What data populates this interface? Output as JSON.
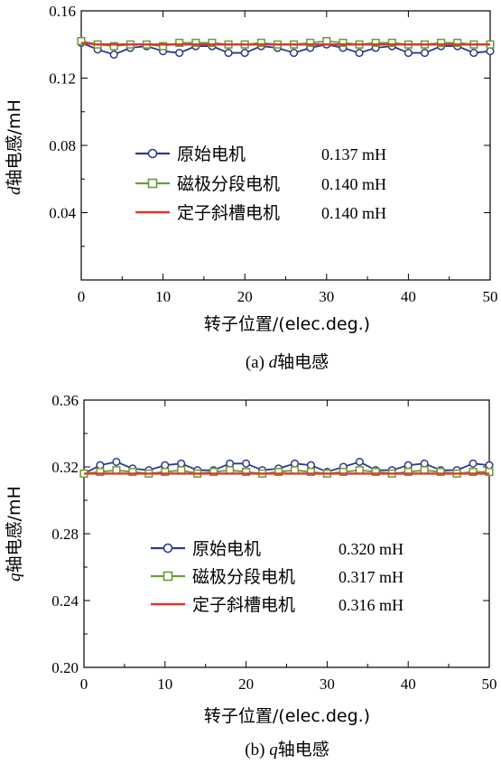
{
  "chart_data": [
    {
      "type": "line",
      "ylabel_var": "d",
      "ylabel": "轴电感/mH",
      "xlabel": "转子位置/(elec.deg.)",
      "caption_prefix": "(a) ",
      "caption_var": "d",
      "caption_suffix": "轴电感",
      "xlim": [
        0,
        50
      ],
      "ylim": [
        0.0,
        0.16
      ],
      "xticks": [
        "0",
        "10",
        "20",
        "30",
        "40",
        "50"
      ],
      "yticks": [
        "0.04",
        "0.08",
        "0.12",
        "0.16"
      ],
      "series": [
        {
          "name": "原始电机",
          "avg_label": "0.137 mH",
          "color": "#2b3a8c",
          "marker": "circle",
          "x": [
            0,
            2,
            4,
            6,
            8,
            10,
            12,
            14,
            16,
            18,
            20,
            22,
            24,
            26,
            28,
            30,
            32,
            34,
            36,
            38,
            40,
            42,
            44,
            46,
            48,
            50
          ],
          "y": [
            0.141,
            0.137,
            0.134,
            0.138,
            0.139,
            0.136,
            0.135,
            0.139,
            0.139,
            0.135,
            0.135,
            0.139,
            0.138,
            0.135,
            0.138,
            0.14,
            0.138,
            0.135,
            0.138,
            0.139,
            0.135,
            0.135,
            0.139,
            0.139,
            0.135,
            0.136
          ]
        },
        {
          "name": "磁极分段电机",
          "avg_label": "0.140 mH",
          "color": "#6a9a3a",
          "marker": "square",
          "x": [
            0,
            2,
            4,
            6,
            8,
            10,
            12,
            14,
            16,
            18,
            20,
            22,
            24,
            26,
            28,
            30,
            32,
            34,
            36,
            38,
            40,
            42,
            44,
            46,
            48,
            50
          ],
          "y": [
            0.142,
            0.14,
            0.139,
            0.14,
            0.14,
            0.139,
            0.141,
            0.141,
            0.141,
            0.14,
            0.14,
            0.141,
            0.14,
            0.14,
            0.141,
            0.142,
            0.141,
            0.14,
            0.141,
            0.141,
            0.14,
            0.14,
            0.141,
            0.141,
            0.14,
            0.14
          ]
        },
        {
          "name": "定子斜槽电机",
          "avg_label": "0.140 mH",
          "color": "#d93a2a",
          "marker": "none",
          "x": [
            0,
            2,
            4,
            6,
            8,
            10,
            12,
            14,
            16,
            18,
            20,
            22,
            24,
            26,
            28,
            30,
            32,
            34,
            36,
            38,
            40,
            42,
            44,
            46,
            48,
            50
          ],
          "y": [
            0.141,
            0.14,
            0.14,
            0.14,
            0.14,
            0.14,
            0.14,
            0.14,
            0.14,
            0.14,
            0.14,
            0.14,
            0.14,
            0.14,
            0.14,
            0.14,
            0.14,
            0.14,
            0.14,
            0.14,
            0.14,
            0.14,
            0.14,
            0.14,
            0.14,
            0.14
          ]
        }
      ]
    },
    {
      "type": "line",
      "ylabel_var": "q",
      "ylabel": "轴电感/mH",
      "xlabel": "转子位置/(elec.deg.)",
      "caption_prefix": "(b) ",
      "caption_var": "q",
      "caption_suffix": "轴电感",
      "xlim": [
        0,
        50
      ],
      "ylim": [
        0.2,
        0.36
      ],
      "xticks": [
        "0",
        "10",
        "20",
        "30",
        "40",
        "50"
      ],
      "yticks": [
        "0.20",
        "0.24",
        "0.28",
        "0.32",
        "0.36"
      ],
      "series": [
        {
          "name": "原始电机",
          "avg_label": "0.320 mH",
          "color": "#2b3a8c",
          "marker": "circle",
          "x": [
            0,
            2,
            4,
            6,
            8,
            10,
            12,
            14,
            16,
            18,
            20,
            22,
            24,
            26,
            28,
            30,
            32,
            34,
            36,
            38,
            40,
            42,
            44,
            46,
            48,
            50
          ],
          "y": [
            0.316,
            0.321,
            0.323,
            0.319,
            0.318,
            0.321,
            0.322,
            0.318,
            0.318,
            0.322,
            0.322,
            0.318,
            0.319,
            0.322,
            0.321,
            0.317,
            0.32,
            0.323,
            0.318,
            0.318,
            0.321,
            0.322,
            0.318,
            0.318,
            0.322,
            0.321
          ]
        },
        {
          "name": "磁极分段电机",
          "avg_label": "0.317 mH",
          "color": "#6a9a3a",
          "marker": "square",
          "x": [
            0,
            2,
            4,
            6,
            8,
            10,
            12,
            14,
            16,
            18,
            20,
            22,
            24,
            26,
            28,
            30,
            32,
            34,
            36,
            38,
            40,
            42,
            44,
            46,
            48,
            50
          ],
          "y": [
            0.316,
            0.317,
            0.318,
            0.317,
            0.316,
            0.317,
            0.318,
            0.316,
            0.317,
            0.318,
            0.317,
            0.316,
            0.317,
            0.318,
            0.317,
            0.316,
            0.317,
            0.318,
            0.317,
            0.316,
            0.317,
            0.318,
            0.317,
            0.316,
            0.317,
            0.317
          ]
        },
        {
          "name": "定子斜槽电机",
          "avg_label": "0.316 mH",
          "color": "#d93a2a",
          "marker": "none",
          "x": [
            0,
            2,
            4,
            6,
            8,
            10,
            12,
            14,
            16,
            18,
            20,
            22,
            24,
            26,
            28,
            30,
            32,
            34,
            36,
            38,
            40,
            42,
            44,
            46,
            48,
            50
          ],
          "y": [
            0.316,
            0.316,
            0.316,
            0.316,
            0.316,
            0.316,
            0.316,
            0.316,
            0.316,
            0.316,
            0.316,
            0.316,
            0.316,
            0.316,
            0.316,
            0.316,
            0.316,
            0.316,
            0.316,
            0.316,
            0.316,
            0.316,
            0.316,
            0.316,
            0.316,
            0.316
          ]
        }
      ]
    }
  ]
}
